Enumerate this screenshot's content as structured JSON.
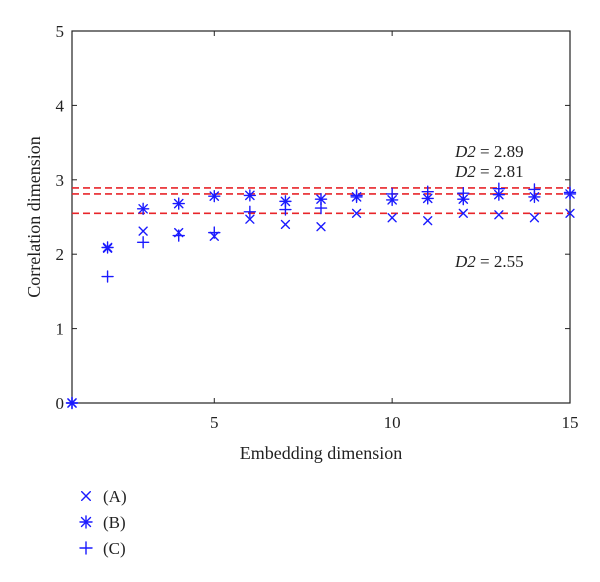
{
  "chart_data": {
    "type": "scatter",
    "xlabel": "Embedding dimension",
    "ylabel": "Correlation dimension",
    "xlim": [
      1,
      15
    ],
    "ylim": [
      0,
      5
    ],
    "xticks": [
      5,
      10,
      15
    ],
    "yticks": [
      0,
      1,
      2,
      3,
      4,
      5
    ],
    "grid": false,
    "legend_position": "bottom-left",
    "marker_color": "#1a1aff",
    "reference_line_color": "#e8252a",
    "series": [
      {
        "name": "(A)",
        "marker": "x",
        "x": [
          1,
          2,
          3,
          4,
          5,
          6,
          7,
          8,
          9,
          10,
          11,
          12,
          13,
          14,
          15
        ],
        "y": [
          0,
          2.08,
          2.31,
          2.29,
          2.24,
          2.47,
          2.4,
          2.37,
          2.55,
          2.49,
          2.45,
          2.55,
          2.53,
          2.49,
          2.55
        ]
      },
      {
        "name": "(B)",
        "marker": "asterisk",
        "x": [
          1,
          2,
          3,
          4,
          5,
          6,
          7,
          8,
          9,
          10,
          11,
          12,
          13,
          14,
          15
        ],
        "y": [
          0,
          2.09,
          2.61,
          2.68,
          2.78,
          2.79,
          2.71,
          2.74,
          2.77,
          2.73,
          2.75,
          2.74,
          2.8,
          2.77,
          2.81
        ]
      },
      {
        "name": "(C)",
        "marker": "plus",
        "x": [
          1,
          2,
          3,
          4,
          5,
          6,
          7,
          8,
          9,
          10,
          11,
          12,
          13,
          14,
          15
        ],
        "y": [
          0,
          1.7,
          2.16,
          2.25,
          2.29,
          2.57,
          2.6,
          2.62,
          2.79,
          2.81,
          2.84,
          2.82,
          2.88,
          2.87,
          2.83
        ]
      }
    ],
    "reference_lines": [
      {
        "y": 2.89,
        "label_prefix": "D2",
        "label_value": " = 2.89"
      },
      {
        "y": 2.81,
        "label_prefix": "D2",
        "label_value": " = 2.81"
      },
      {
        "y": 2.55,
        "label_prefix": "D2",
        "label_value": " = 2.55"
      }
    ]
  }
}
